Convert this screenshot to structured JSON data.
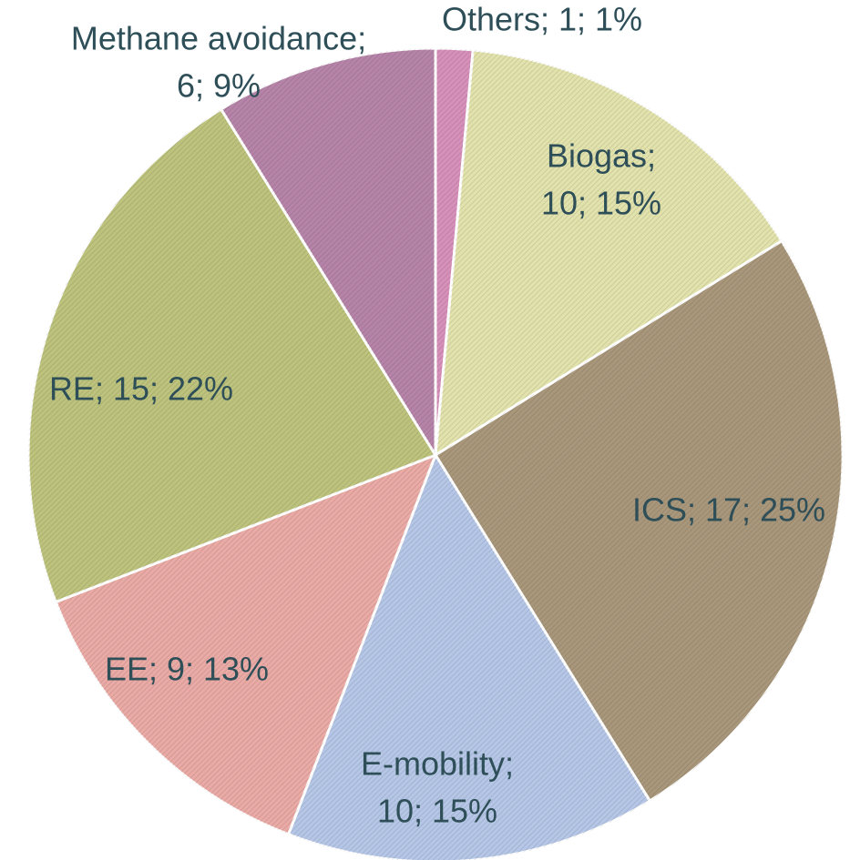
{
  "chart_data": {
    "type": "pie",
    "values": [
      1,
      10,
      17,
      10,
      9,
      15,
      6
    ],
    "value_labels": [
      [
        "Others; 1; 1%"
      ],
      [
        "Biogas;",
        "10; 15%"
      ],
      [
        "ICS; 17; 25%"
      ],
      [
        "E-mobility;",
        "10; 15%"
      ],
      [
        "EE; 9; 13%"
      ],
      [
        "RE; 15; 22%"
      ],
      [
        "Methane avoidance;",
        "6; 9%"
      ]
    ],
    "colors": [
      "#d690b9",
      "#e2e2ad",
      "#a9977b",
      "#b5c6e6",
      "#eaaaa5",
      "#bdc37d",
      "#b684a8"
    ]
  }
}
